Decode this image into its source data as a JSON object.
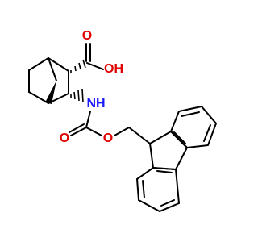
{
  "atoms": [
    {
      "label": "O"
    },
    {
      "label": "OH"
    },
    {
      "label": "NH"
    },
    {
      "label": "O"
    },
    {
      "label": "O"
    }
  ]
}
